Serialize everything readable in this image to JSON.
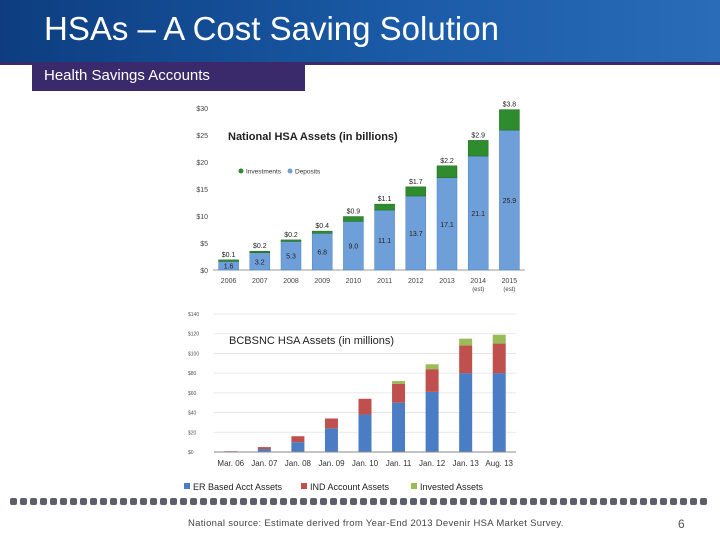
{
  "slide": {
    "title": "HSAs – A Cost Saving Solution",
    "section": "Health Savings Accounts",
    "source": "National source: Estimate derived from Year-End 2013 Devenir HSA Market Survey.",
    "page": "6"
  },
  "colors": {
    "header": "#1a5aa6",
    "band": "#3b2a6b",
    "investments": "#2e8b2e",
    "deposits": "#6f9fd8",
    "er": "#4a7dc4",
    "ind": "#c0504d",
    "invested": "#9bbb59"
  },
  "chart_data": [
    {
      "type": "bar",
      "stacked": true,
      "title": "National HSA Assets (in billions)",
      "legend": [
        "Investments",
        "Deposits"
      ],
      "legend_position": "top-left",
      "categories": [
        "2006",
        "2007",
        "2008",
        "2009",
        "2010",
        "2011",
        "2012",
        "2013",
        "2014 (est)",
        "2015 (est)"
      ],
      "yticks": [
        "$30",
        "$25",
        "$20",
        "$15",
        "$10",
        "$5",
        "$0"
      ],
      "ylim": [
        0,
        30
      ],
      "grid": false,
      "series": [
        {
          "name": "Deposits",
          "values": [
            1.6,
            3.2,
            5.3,
            6.8,
            9.0,
            11.1,
            13.7,
            17.1,
            21.1,
            25.9
          ]
        },
        {
          "name": "Investments",
          "values": [
            0.1,
            0.2,
            0.2,
            0.4,
            0.9,
            1.1,
            1.7,
            2.2,
            2.9,
            3.8
          ]
        }
      ],
      "deposit_labels": [
        "1.6",
        "3.2",
        "5.3",
        "6.8",
        "9.0",
        "11.1",
        "13.7",
        "17.1",
        "21.1",
        "25.9"
      ],
      "investment_labels": [
        "$0.1",
        "$0.2",
        "$0.2",
        "$0.4",
        "$0.9",
        "$1.1",
        "$1.7",
        "$2.2",
        "$2.9",
        "$3.8"
      ]
    },
    {
      "type": "bar",
      "stacked": true,
      "title": "BCBSNC HSA Assets (in millions)",
      "legend": [
        "ER Based Acct Assets",
        "IND Account Assets",
        "Invested Assets"
      ],
      "legend_position": "bottom",
      "categories": [
        "Mar. 06",
        "Jan. 07",
        "Jan. 08",
        "Jan. 09",
        "Jan. 10",
        "Jan. 11",
        "Jan. 12",
        "Jan. 13",
        "Aug. 13"
      ],
      "yticks": [
        "$140",
        "$120",
        "$100",
        "$80",
        "$60",
        "$40",
        "$20",
        "$0"
      ],
      "ylim": [
        0,
        140
      ],
      "grid": true,
      "series": [
        {
          "name": "ER Based Acct Assets",
          "values": [
            0.5,
            3,
            10,
            24,
            38,
            50,
            61,
            80,
            80
          ]
        },
        {
          "name": "IND Account Assets",
          "values": [
            0.3,
            2,
            6,
            10,
            16,
            19,
            23,
            28,
            30
          ]
        },
        {
          "name": "Invested Assets",
          "values": [
            0,
            0,
            0,
            0,
            0,
            3,
            5,
            7,
            9
          ]
        }
      ]
    }
  ]
}
